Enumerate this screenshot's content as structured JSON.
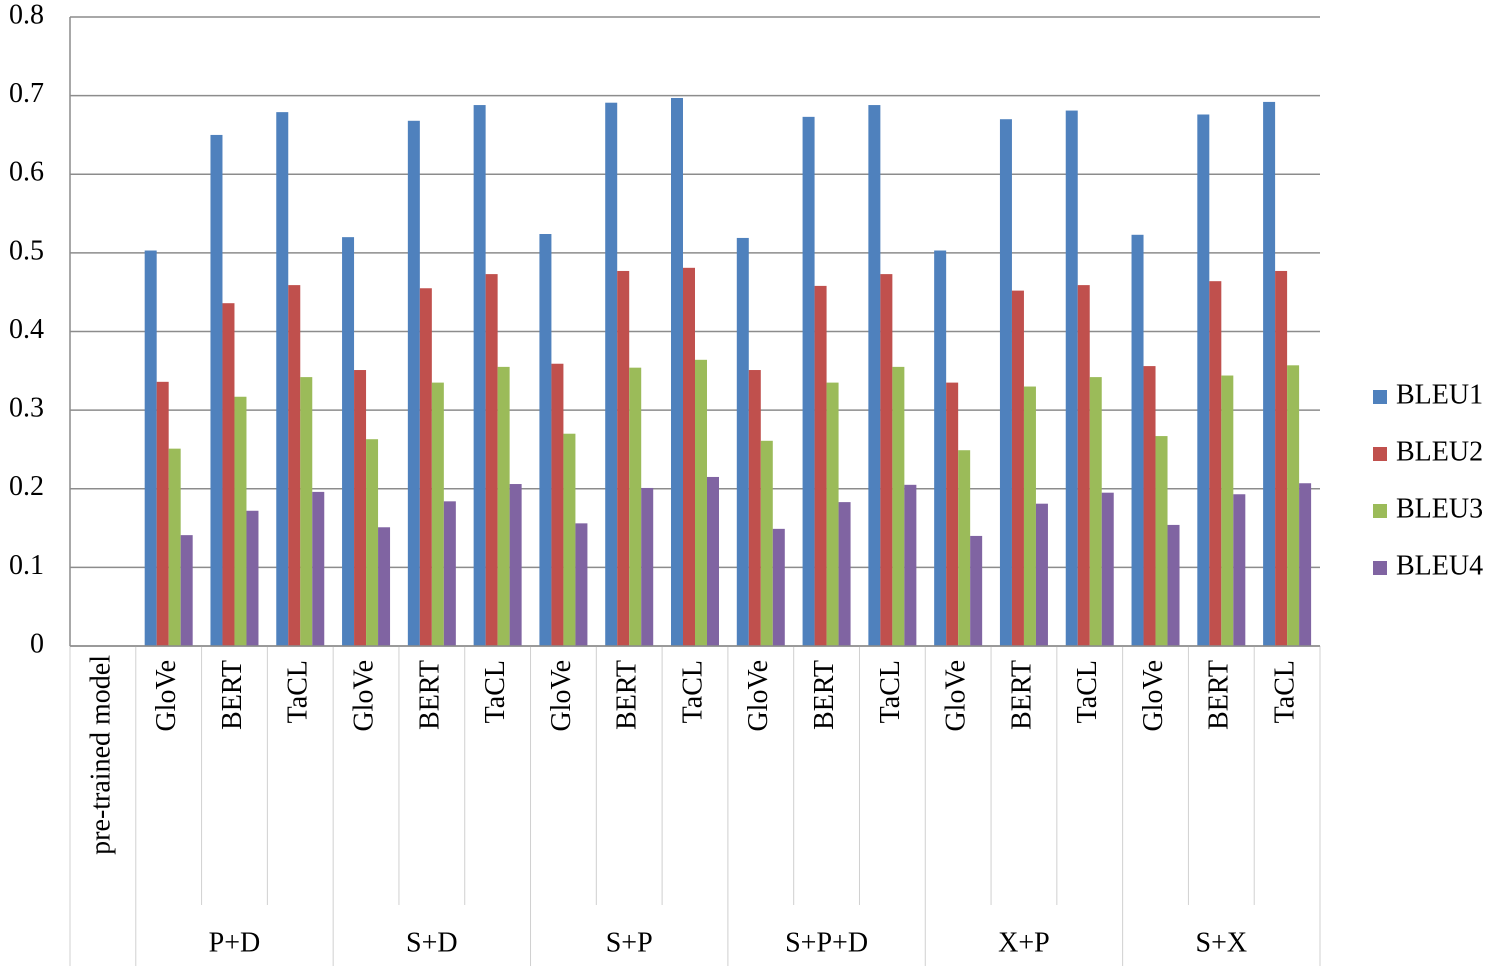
{
  "chart_data": {
    "type": "bar",
    "categories": [
      "pre-trained model",
      "GloVe",
      "BERT",
      "TaCL",
      "GloVe",
      "BERT",
      "TaCL",
      "GloVe",
      "BERT",
      "TaCL",
      "GloVe",
      "BERT",
      "TaCL",
      "GloVe",
      "BERT",
      "TaCL",
      "GloVe",
      "BERT",
      "TaCL"
    ],
    "group_labels": [
      "P+D",
      "S+D",
      "S+P",
      "S+P+D",
      "X+P",
      "S+X"
    ],
    "series": [
      {
        "name": "BLEU1",
        "color": "#4f81bd",
        "values": [
          null,
          0.503,
          0.65,
          0.679,
          0.52,
          0.668,
          0.688,
          0.524,
          0.691,
          0.697,
          0.519,
          0.673,
          0.688,
          0.503,
          0.67,
          0.681,
          0.523,
          0.676,
          0.692
        ]
      },
      {
        "name": "BLEU2",
        "color": "#c0504d",
        "values": [
          null,
          0.336,
          0.436,
          0.459,
          0.351,
          0.455,
          0.473,
          0.359,
          0.477,
          0.481,
          0.351,
          0.458,
          0.473,
          0.335,
          0.452,
          0.459,
          0.356,
          0.464,
          0.477
        ]
      },
      {
        "name": "BLEU3",
        "color": "#9bbb59",
        "values": [
          null,
          0.251,
          0.317,
          0.342,
          0.263,
          0.335,
          0.355,
          0.27,
          0.354,
          0.364,
          0.261,
          0.335,
          0.355,
          0.249,
          0.33,
          0.342,
          0.267,
          0.344,
          0.357
        ]
      },
      {
        "name": "BLEU4",
        "color": "#8064a2",
        "values": [
          null,
          0.141,
          0.172,
          0.196,
          0.151,
          0.184,
          0.206,
          0.156,
          0.201,
          0.215,
          0.149,
          0.183,
          0.205,
          0.14,
          0.181,
          0.195,
          0.154,
          0.193,
          0.207
        ]
      }
    ],
    "ylim": [
      0,
      0.8
    ],
    "yticks": [
      0,
      0.1,
      0.2,
      0.3,
      0.4,
      0.5,
      0.6,
      0.7,
      0.8
    ],
    "grid": true,
    "legend": "right"
  }
}
